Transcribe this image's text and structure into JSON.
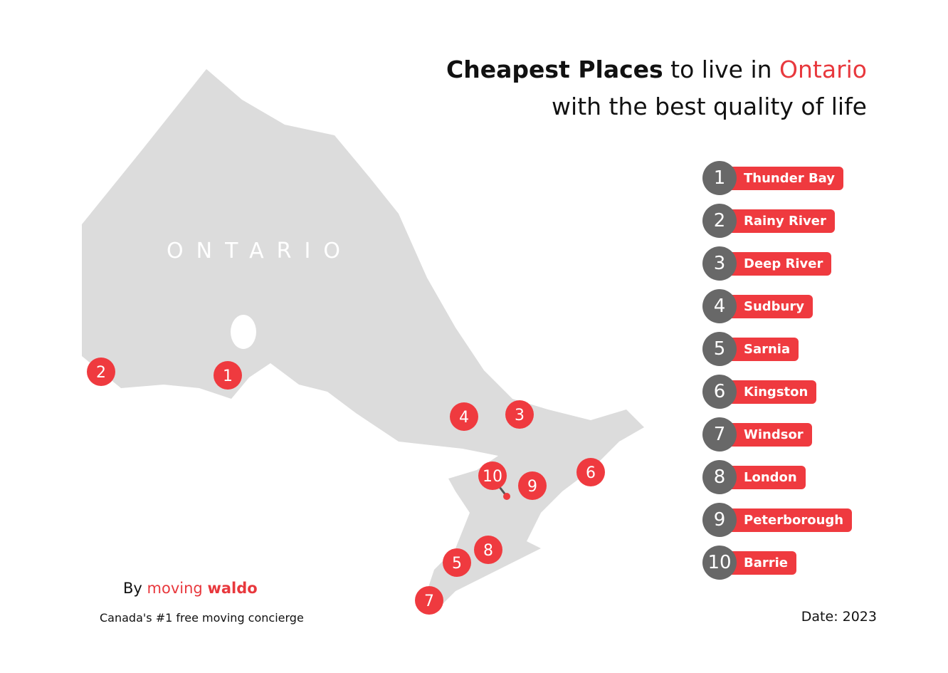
{
  "title": {
    "bold": "Cheapest Places",
    "middle": " to live in ",
    "highlight": "Ontario",
    "line2": "with the best quality of life"
  },
  "map_label": "ONTARIO",
  "ranking": [
    {
      "rank": "1",
      "name": "Thunder Bay"
    },
    {
      "rank": "2",
      "name": "Rainy River"
    },
    {
      "rank": "3",
      "name": "Deep River"
    },
    {
      "rank": "4",
      "name": "Sudbury"
    },
    {
      "rank": "5",
      "name": "Sarnia"
    },
    {
      "rank": "6",
      "name": "Kingston"
    },
    {
      "rank": "7",
      "name": "Windsor"
    },
    {
      "rank": "8",
      "name": "London"
    },
    {
      "rank": "9",
      "name": "Peterborough"
    },
    {
      "rank": "10",
      "name": "Barrie"
    }
  ],
  "byline": {
    "by": "By",
    "brand1": "moving",
    "brand2": "waldo"
  },
  "tagline": "Canada's #1 free moving concierge",
  "date": "Date: 2023"
}
